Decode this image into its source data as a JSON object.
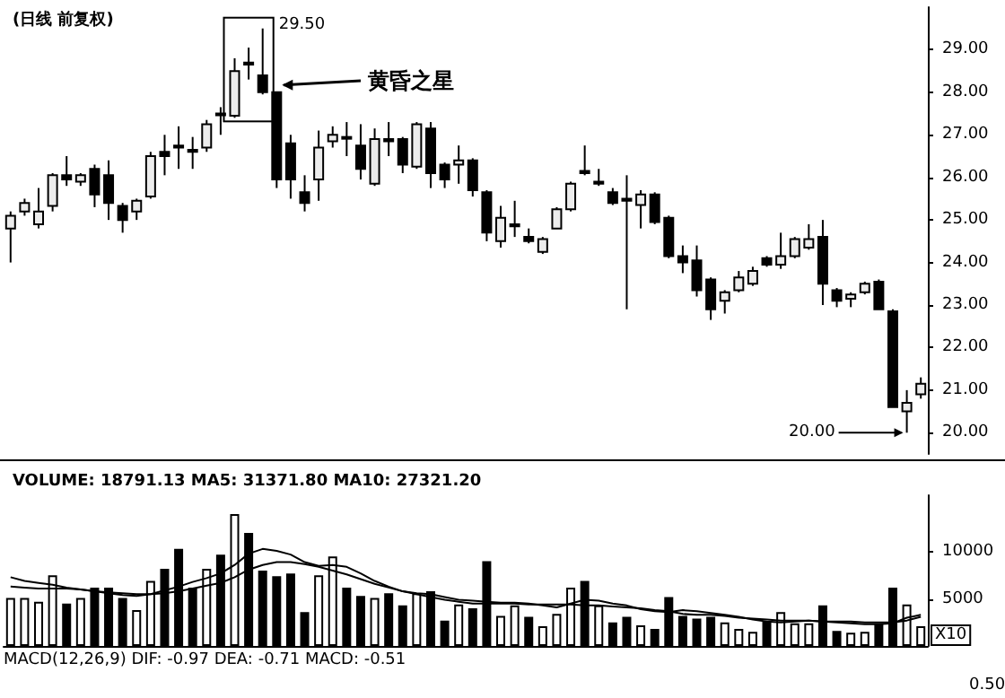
{
  "chart_data": [
    {
      "type": "candlestick",
      "title": "(日线 前复权)",
      "categories": [
        null,
        null,
        null,
        null,
        null,
        null,
        null,
        null,
        null,
        null,
        null,
        null,
        null,
        null,
        null,
        null,
        null,
        null,
        null,
        null,
        null,
        null,
        null,
        null,
        null,
        null,
        null,
        null,
        null,
        null,
        null,
        null,
        null,
        null,
        null,
        null,
        null,
        null,
        null,
        null,
        null,
        null,
        null,
        null,
        null,
        null,
        null,
        null,
        null,
        null,
        null,
        null,
        null,
        null,
        null,
        null,
        null,
        null,
        null,
        null,
        null,
        null,
        null,
        null,
        null,
        null
      ],
      "ohlc": [
        [
          24.8,
          25.2,
          24.0,
          25.1
        ],
        [
          25.2,
          25.5,
          25.1,
          25.4
        ],
        [
          24.9,
          25.75,
          24.8,
          25.2
        ],
        [
          25.33,
          26.1,
          25.2,
          26.05
        ],
        [
          26.05,
          26.5,
          25.8,
          25.95
        ],
        [
          25.9,
          26.1,
          25.8,
          26.05
        ],
        [
          26.2,
          26.3,
          25.3,
          25.6
        ],
        [
          26.05,
          26.4,
          25.0,
          25.4
        ],
        [
          25.33,
          25.4,
          24.7,
          25.0
        ],
        [
          25.2,
          25.5,
          25.0,
          25.45
        ],
        [
          25.55,
          26.6,
          25.5,
          26.5
        ],
        [
          26.6,
          27.0,
          26.05,
          26.5
        ],
        [
          26.75,
          27.2,
          26.2,
          26.7
        ],
        [
          26.65,
          26.95,
          26.2,
          26.6
        ],
        [
          26.7,
          27.35,
          26.6,
          27.25
        ],
        [
          27.5,
          27.65,
          27.0,
          27.5
        ],
        [
          27.45,
          28.8,
          27.4,
          28.5
        ],
        [
          28.7,
          29.05,
          28.3,
          28.65
        ],
        [
          28.4,
          29.5,
          27.95,
          28.0
        ],
        [
          28.0,
          28.0,
          25.75,
          25.95
        ],
        [
          26.8,
          27.0,
          25.5,
          25.95
        ],
        [
          25.65,
          26.05,
          25.2,
          25.4
        ],
        [
          25.95,
          27.1,
          25.45,
          26.7
        ],
        [
          26.85,
          27.2,
          26.7,
          27.0
        ],
        [
          26.95,
          27.3,
          26.5,
          26.95
        ],
        [
          26.75,
          27.25,
          25.95,
          26.2
        ],
        [
          25.85,
          27.15,
          25.8,
          26.9
        ],
        [
          26.9,
          27.3,
          26.5,
          26.85
        ],
        [
          26.9,
          26.95,
          26.1,
          26.3
        ],
        [
          26.25,
          27.3,
          26.2,
          27.25
        ],
        [
          27.15,
          27.3,
          25.75,
          26.1
        ],
        [
          26.3,
          26.35,
          25.75,
          25.95
        ],
        [
          26.3,
          26.75,
          25.85,
          26.4
        ],
        [
          26.4,
          26.45,
          25.55,
          25.7
        ],
        [
          25.65,
          25.7,
          24.5,
          24.7
        ],
        [
          24.5,
          25.33,
          24.35,
          25.05
        ],
        [
          24.9,
          25.45,
          24.6,
          24.85
        ],
        [
          24.6,
          24.8,
          24.45,
          24.5
        ],
        [
          24.25,
          24.6,
          24.2,
          24.55
        ],
        [
          24.8,
          25.3,
          24.8,
          25.25
        ],
        [
          25.25,
          25.9,
          25.2,
          25.85
        ],
        [
          26.15,
          26.75,
          26.05,
          26.1
        ],
        [
          25.9,
          26.2,
          25.8,
          25.85
        ],
        [
          25.65,
          25.75,
          25.35,
          25.4
        ],
        [
          25.5,
          26.05,
          22.9,
          25.45
        ],
        [
          25.35,
          25.7,
          24.8,
          25.6
        ],
        [
          25.6,
          25.65,
          24.9,
          24.95
        ],
        [
          25.05,
          25.1,
          24.1,
          24.15
        ],
        [
          24.15,
          24.4,
          23.75,
          24.0
        ],
        [
          24.05,
          24.4,
          23.2,
          23.35
        ],
        [
          23.6,
          23.65,
          22.65,
          22.9
        ],
        [
          23.1,
          23.35,
          22.8,
          23.3
        ],
        [
          23.35,
          23.8,
          23.3,
          23.65
        ],
        [
          23.5,
          23.9,
          23.45,
          23.8
        ],
        [
          24.1,
          24.15,
          23.9,
          23.95
        ],
        [
          23.95,
          24.7,
          23.85,
          24.15
        ],
        [
          24.15,
          24.6,
          24.1,
          24.55
        ],
        [
          24.35,
          24.9,
          24.3,
          24.55
        ],
        [
          24.6,
          25.0,
          23.0,
          23.5
        ],
        [
          23.35,
          23.4,
          22.95,
          23.1
        ],
        [
          23.15,
          23.3,
          22.95,
          23.25
        ],
        [
          23.3,
          23.55,
          23.25,
          23.5
        ],
        [
          23.55,
          23.6,
          22.9,
          22.9
        ],
        [
          22.85,
          22.9,
          20.6,
          20.6
        ],
        [
          20.5,
          21.0,
          20.0,
          20.7
        ],
        [
          20.9,
          21.3,
          20.8,
          21.15
        ]
      ],
      "ylim": [
        19.5,
        30
      ],
      "yticks": [
        {
          "value": 20,
          "label": "20.00"
        },
        {
          "value": 21,
          "label": "21.00"
        },
        {
          "value": 22,
          "label": "22.00"
        },
        {
          "value": 23,
          "label": "23.00"
        },
        {
          "value": 24,
          "label": "24.00"
        },
        {
          "value": 25,
          "label": "25.00"
        },
        {
          "value": 26,
          "label": "26.00"
        },
        {
          "value": 27,
          "label": "27.00"
        },
        {
          "value": 28,
          "label": "28.00"
        },
        {
          "value": 29,
          "label": "29.00"
        }
      ],
      "tick_labels": "y",
      "annotations": [
        "29.50",
        "20.00",
        "黄昏之星"
      ]
    },
    {
      "type": "bar",
      "title": "VOLUME: 18791.13 MA5: 31371.80 MA10: 27321.20",
      "categories": [
        null,
        null,
        null,
        null,
        null,
        null,
        null,
        null,
        null,
        null,
        null,
        null,
        null,
        null,
        null,
        null,
        null,
        null,
        null,
        null,
        null,
        null,
        null,
        null,
        null,
        null,
        null,
        null,
        null,
        null,
        null,
        null,
        null,
        null,
        null,
        null,
        null,
        null,
        null,
        null,
        null,
        null,
        null,
        null,
        null,
        null,
        null,
        null,
        null,
        null,
        null,
        null,
        null,
        null,
        null,
        null,
        null,
        null,
        null,
        null,
        null,
        null,
        null,
        null,
        null,
        null
      ],
      "series": [
        {
          "type": "bar",
          "values": [
            5100,
            5100,
            4700,
            7500,
            4500,
            5100,
            6200,
            6200,
            5100,
            3800,
            6900,
            8200,
            10300,
            6200,
            8200,
            9700,
            14000,
            12000,
            8000,
            7400,
            7700,
            3600,
            7500,
            9500,
            6200,
            5300,
            5100,
            5600,
            4300,
            5600,
            5800,
            2700,
            4400,
            4000,
            9000,
            3200,
            4300,
            3100,
            2100,
            3400,
            6200,
            6900,
            4300,
            2500,
            3100,
            2200,
            1800,
            5200,
            3200,
            2900,
            3100,
            2500,
            1800,
            1500,
            2600,
            3600,
            2400,
            2400,
            4300,
            1600,
            1400,
            1500,
            2400,
            6200,
            4400,
            2100
          ],
          "colors": [
            "#ffffff",
            "#ffffff",
            "#ffffff",
            "#ffffff",
            "#000000",
            "#ffffff",
            "#000000",
            "#000000",
            "#000000",
            "#ffffff",
            "#ffffff",
            "#000000",
            "#000000",
            "#000000",
            "#ffffff",
            "#000000",
            "#ffffff",
            "#000000",
            "#000000",
            "#000000",
            "#000000",
            "#000000",
            "#ffffff",
            "#ffffff",
            "#000000",
            "#000000",
            "#ffffff",
            "#000000",
            "#000000",
            "#ffffff",
            "#000000",
            "#000000",
            "#ffffff",
            "#000000",
            "#000000",
            "#ffffff",
            "#ffffff",
            "#000000",
            "#ffffff",
            "#ffffff",
            "#ffffff",
            "#000000",
            "#ffffff",
            "#000000",
            "#000000",
            "#ffffff",
            "#000000",
            "#000000",
            "#000000",
            "#000000",
            "#000000",
            "#ffffff",
            "#ffffff",
            "#ffffff",
            "#000000",
            "#ffffff",
            "#ffffff",
            "#ffffff",
            "#000000",
            "#000000",
            "#ffffff",
            "#ffffff",
            "#000000",
            "#000000",
            "#ffffff",
            "#ffffff"
          ]
        },
        {
          "type": "line",
          "color": "#000000",
          "values": [
            7300,
            6900,
            6700,
            6500,
            6200,
            6000,
            5800,
            5600,
            5400,
            5300,
            5500,
            5900,
            6300,
            6800,
            7200,
            7700,
            8600,
            9800,
            10300,
            10100,
            9700,
            8900,
            8500,
            8600,
            8400,
            7700,
            6900,
            6300,
            5800,
            5600,
            5500,
            5200,
            4900,
            4800,
            4700,
            4600,
            4600,
            4500,
            4300,
            4100,
            4500,
            4900,
            4800,
            4500,
            4300,
            3900,
            3700,
            3600,
            3800,
            3700,
            3500,
            3300,
            3100,
            2800,
            2600,
            2500,
            2600,
            2700,
            2600,
            2500,
            2400,
            2300,
            2300,
            2400,
            3000,
            3300
          ]
        },
        {
          "type": "line",
          "color": "#000000",
          "values": [
            6300,
            6200,
            6100,
            6100,
            6100,
            6000,
            5800,
            5700,
            5600,
            5500,
            5500,
            5600,
            5800,
            6100,
            6400,
            6700,
            7300,
            8100,
            8600,
            8900,
            8900,
            8700,
            8400,
            8000,
            7600,
            7100,
            6600,
            6200,
            5800,
            5500,
            5200,
            4900,
            4700,
            4500,
            4500,
            4500,
            4500,
            4400,
            4400,
            4400,
            4400,
            4300,
            4300,
            4200,
            4100,
            4000,
            3800,
            3700,
            3400,
            3300,
            3300,
            3200,
            3000,
            2900,
            2800,
            2700,
            2700,
            2700,
            2600,
            2600,
            2600,
            2500,
            2500,
            2500,
            2700,
            3100
          ]
        }
      ],
      "ylim": [
        0,
        16000
      ],
      "yticks": [
        5000,
        10000
      ],
      "tick_labels": "y",
      "marker": "none",
      "line_style": "solid",
      "annotations": [
        "X10",
        "MACD(12,26,9) DIF: -0.97 DEA: -0.71 MACD: -0.51",
        "0.50"
      ]
    }
  ]
}
